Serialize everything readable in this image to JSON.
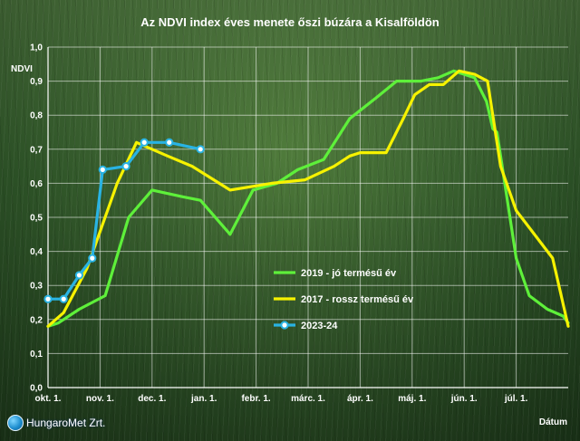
{
  "chart_data": {
    "type": "line",
    "title": "Az NDVI index éves menete őszi búzára a Kisalföldön",
    "ylabel": "NDVI",
    "xlabel": "Dátum",
    "ylim": [
      0,
      1.0
    ],
    "xlim": [
      0,
      10
    ],
    "yticks": [
      "0,0",
      "0,1",
      "0,2",
      "0,3",
      "0,4",
      "0,5",
      "0,6",
      "0,7",
      "0,8",
      "0,9",
      "1,0"
    ],
    "xticks": [
      "okt. 1.",
      "nov. 1.",
      "dec. 1.",
      "jan. 1.",
      "febr. 1.",
      "márc. 1.",
      "ápr. 1.",
      "máj. 1.",
      "jún. 1.",
      "júl. 1."
    ],
    "grid": true,
    "legend_position": "lower-center",
    "series": [
      {
        "name": "2019 - jó termésű év",
        "color": "#5ef03a",
        "marker": "none",
        "x": [
          0.0,
          0.2,
          0.6,
          1.1,
          1.55,
          2.0,
          2.6,
          2.93,
          3.5,
          3.94,
          4.4,
          4.8,
          5.3,
          5.8,
          6.3,
          6.7,
          7.17,
          7.5,
          7.8,
          8.2,
          8.43,
          8.55,
          8.63,
          8.8,
          9.0,
          9.25,
          9.6,
          9.9,
          10.0
        ],
        "y": [
          0.18,
          0.19,
          0.23,
          0.27,
          0.5,
          0.58,
          0.56,
          0.55,
          0.45,
          0.58,
          0.6,
          0.64,
          0.67,
          0.79,
          0.85,
          0.9,
          0.9,
          0.91,
          0.93,
          0.91,
          0.84,
          0.76,
          0.75,
          0.58,
          0.38,
          0.27,
          0.23,
          0.21,
          0.19
        ]
      },
      {
        "name": "2017 - rossz termésű év",
        "color": "#f6f200",
        "marker": "none",
        "x": [
          0.0,
          0.3,
          0.75,
          1.33,
          1.7,
          2.3,
          2.77,
          3.5,
          4.3,
          4.94,
          5.5,
          5.8,
          6.0,
          6.5,
          6.83,
          7.05,
          7.33,
          7.6,
          7.9,
          8.2,
          8.45,
          8.7,
          9.0,
          9.3,
          9.7,
          10.0
        ],
        "y": [
          0.18,
          0.22,
          0.35,
          0.6,
          0.72,
          0.68,
          0.65,
          0.58,
          0.6,
          0.61,
          0.65,
          0.68,
          0.69,
          0.69,
          0.79,
          0.86,
          0.89,
          0.89,
          0.93,
          0.92,
          0.9,
          0.65,
          0.52,
          0.46,
          0.38,
          0.18
        ]
      },
      {
        "name": "2023-24",
        "color": "#29b3e3",
        "marker": "circle",
        "x": [
          0.0,
          0.3,
          0.6,
          0.85,
          1.05,
          1.5,
          1.85,
          2.33,
          2.93
        ],
        "y": [
          0.26,
          0.26,
          0.33,
          0.38,
          0.64,
          0.65,
          0.72,
          0.72,
          0.7
        ]
      }
    ]
  },
  "logo": {
    "text": "HungaroMet Zrt."
  }
}
